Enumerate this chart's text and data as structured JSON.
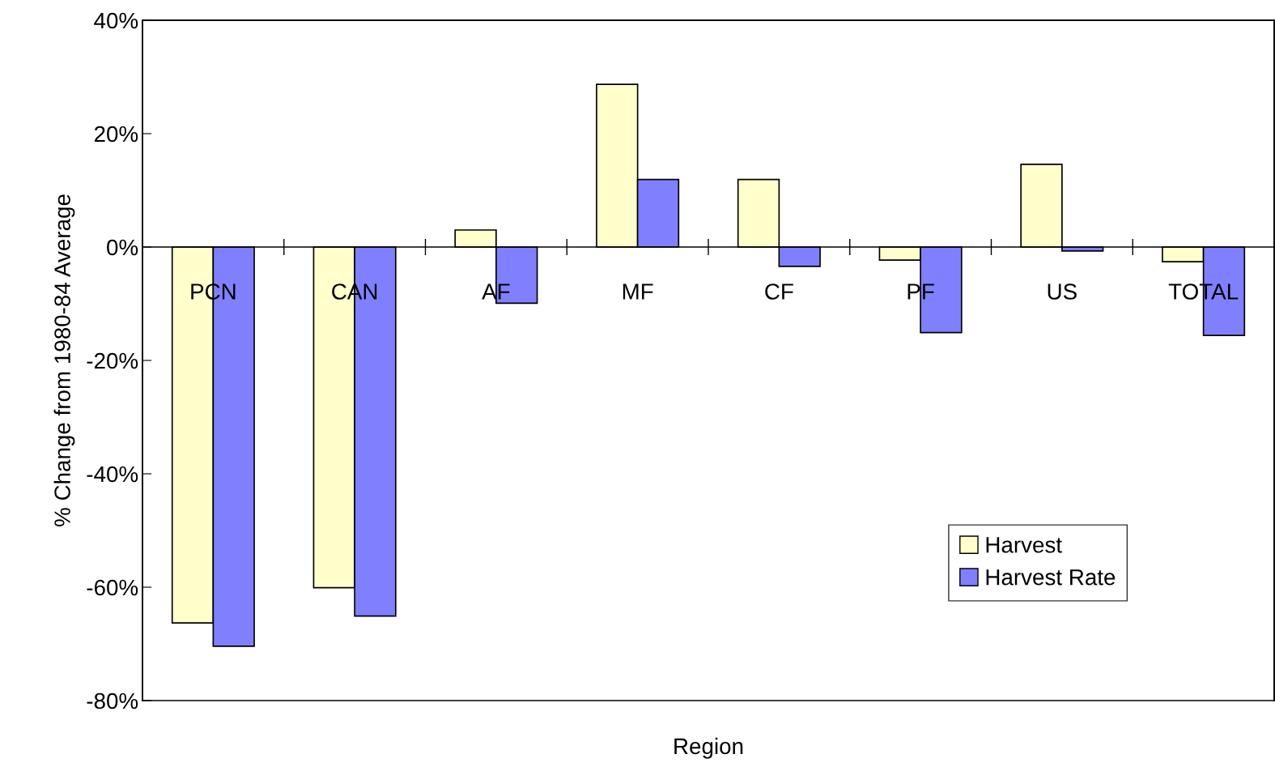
{
  "chart_data": {
    "type": "bar",
    "xlabel": "Region",
    "ylabel": "% Change from 1980-84 Average",
    "categories": [
      "PCN",
      "CAN",
      "AF",
      "MF",
      "CF",
      "PF",
      "US",
      "TOTAL"
    ],
    "series": [
      {
        "name": "Harvest",
        "color": "#ffffcc",
        "values": [
          -66.3,
          -60.1,
          3.0,
          28.7,
          11.9,
          -2.3,
          14.6,
          -2.6
        ]
      },
      {
        "name": "Harvest Rate",
        "color": "#8080ff",
        "values": [
          -70.4,
          -65.1,
          -9.9,
          11.9,
          -3.4,
          -15.1,
          -0.7,
          -15.6
        ]
      }
    ],
    "ylim": [
      -80,
      40
    ],
    "yticks": [
      {
        "value": -80,
        "label": "-80%"
      },
      {
        "value": -60,
        "label": "-60%"
      },
      {
        "value": -40,
        "label": "-40%"
      },
      {
        "value": -20,
        "label": "-20%"
      },
      {
        "value": 0,
        "label": "0%"
      },
      {
        "value": 20,
        "label": "20%"
      },
      {
        "value": 40,
        "label": "40%"
      }
    ],
    "grid": false,
    "legend": "bottom right"
  }
}
